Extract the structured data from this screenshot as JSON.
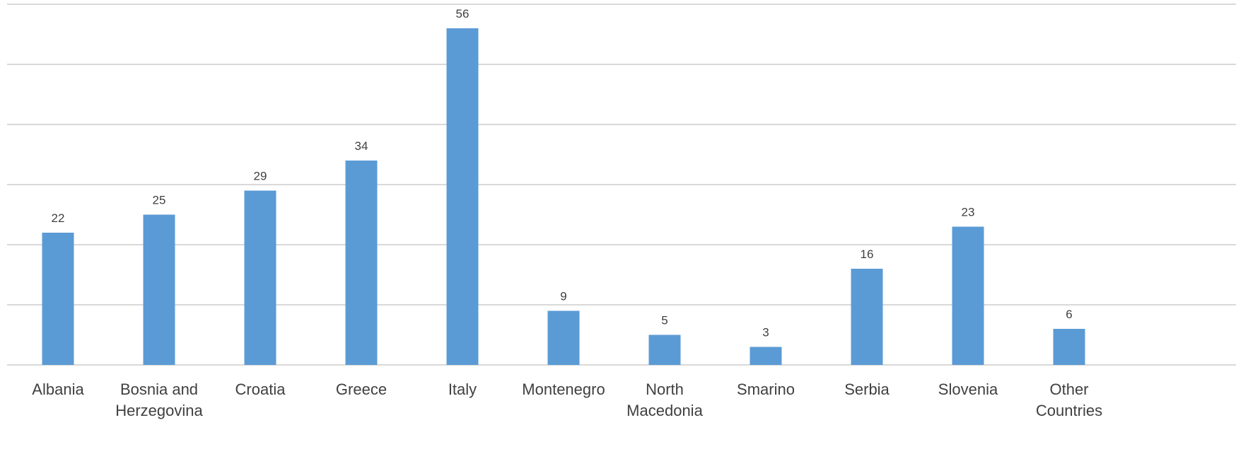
{
  "chart_data": {
    "type": "bar",
    "title": "",
    "xlabel": "",
    "ylabel": "",
    "categories": [
      [
        "Albania"
      ],
      [
        "Bosnia and",
        "Herzegovina"
      ],
      [
        "Croatia"
      ],
      [
        "Greece"
      ],
      [
        "Italy"
      ],
      [
        "Montenegro"
      ],
      [
        "North",
        "Macedonia"
      ],
      [
        "Smarino"
      ],
      [
        "Serbia"
      ],
      [
        "Slovenia"
      ],
      [
        "Other",
        "Countries"
      ]
    ],
    "values": [
      22,
      25,
      29,
      34,
      56,
      9,
      5,
      3,
      16,
      23,
      6
    ],
    "ylim": [
      0,
      60
    ],
    "gridlines": [
      0,
      10,
      20,
      30,
      40,
      50,
      60
    ],
    "grid": true,
    "legend": "none",
    "show_axis_tick_labels": false,
    "bar_color": "#5b9bd5",
    "grid_color": "#d9d9d9",
    "text_color": "#404040"
  }
}
